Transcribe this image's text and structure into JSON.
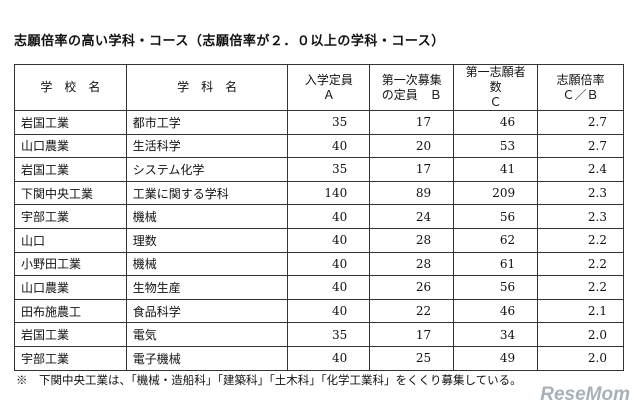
{
  "title": "志願倍率の高い学科・コース（志願倍率が２．０以上の学科・コース）",
  "headers": {
    "school": "学　校　名",
    "subject": "学　科　名",
    "capacity_1": "入学定員",
    "capacity_2": "Ａ",
    "first_quota_1": "第一次募集",
    "first_quota_2": "の定員　Ｂ",
    "applicants_1": "第一志願者数",
    "applicants_2": "Ｃ",
    "ratio_1": "志願倍率",
    "ratio_2": "Ｃ／Ｂ"
  },
  "rows": [
    {
      "school": "岩国工業",
      "subject": "都市工学",
      "a": "35",
      "b": "17",
      "c": "46",
      "ratio": "2.7"
    },
    {
      "school": "山口農業",
      "subject": "生活科学",
      "a": "40",
      "b": "20",
      "c": "53",
      "ratio": "2.7"
    },
    {
      "school": "岩国工業",
      "subject": "システム化学",
      "a": "35",
      "b": "17",
      "c": "41",
      "ratio": "2.4"
    },
    {
      "school": "下関中央工業",
      "subject": "工業に関する学科",
      "a": "140",
      "b": "89",
      "c": "209",
      "ratio": "2.3"
    },
    {
      "school": "宇部工業",
      "subject": "機械",
      "a": "40",
      "b": "24",
      "c": "56",
      "ratio": "2.3"
    },
    {
      "school": "山口",
      "subject": "理数",
      "a": "40",
      "b": "28",
      "c": "62",
      "ratio": "2.2"
    },
    {
      "school": "小野田工業",
      "subject": "機械",
      "a": "40",
      "b": "28",
      "c": "61",
      "ratio": "2.2"
    },
    {
      "school": "山口農業",
      "subject": "生物生産",
      "a": "40",
      "b": "26",
      "c": "56",
      "ratio": "2.2"
    },
    {
      "school": "田布施農工",
      "subject": "食品科学",
      "a": "40",
      "b": "22",
      "c": "46",
      "ratio": "2.1"
    },
    {
      "school": "岩国工業",
      "subject": "電気",
      "a": "35",
      "b": "17",
      "c": "34",
      "ratio": "2.0"
    },
    {
      "school": "宇部工業",
      "subject": "電子機械",
      "a": "40",
      "b": "25",
      "c": "49",
      "ratio": "2.0"
    }
  ],
  "note": "※　下関中央工業は、「機械・造船科」「建築科」「土木科」「化学工業科」をくくり募集している。",
  "watermark": "ReseMom"
}
